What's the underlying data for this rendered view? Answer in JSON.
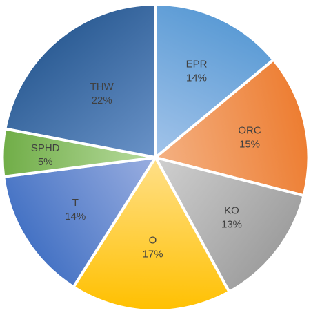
{
  "chart_data": {
    "type": "pie",
    "title": "",
    "start_angle_deg": 0,
    "direction": "clockwise",
    "slices": [
      {
        "label": "EPR",
        "percent_label": "14%",
        "value": 14,
        "color_light": "#a3c4ea",
        "color_dark": "#5b9bd5",
        "label_color": "#404040"
      },
      {
        "label": "ORC",
        "percent_label": "15%",
        "value": 15,
        "color_light": "#f4b183",
        "color_dark": "#ed7d31",
        "label_color": "#404040"
      },
      {
        "label": "KO",
        "percent_label": "13%",
        "value": 13,
        "color_light": "#d0d0d0",
        "color_dark": "#9e9e9e",
        "label_color": "#404040"
      },
      {
        "label": "O",
        "percent_label": "17%",
        "value": 17,
        "color_light": "#ffe08a",
        "color_dark": "#ffc000",
        "label_color": "#404040"
      },
      {
        "label": "T",
        "percent_label": "14%",
        "value": 14,
        "color_light": "#9aaee0",
        "color_dark": "#4472c4",
        "label_color": "#404040"
      },
      {
        "label": "SPHD",
        "percent_label": "5%",
        "value": 5,
        "color_light": "#b9dca0",
        "color_dark": "#70ad47",
        "label_color": "#404040"
      },
      {
        "label": "THW",
        "percent_label": "22%",
        "value": 22,
        "color_light": "#6a93c8",
        "color_dark": "#2e5e96",
        "label_color": "#e02020"
      }
    ]
  }
}
